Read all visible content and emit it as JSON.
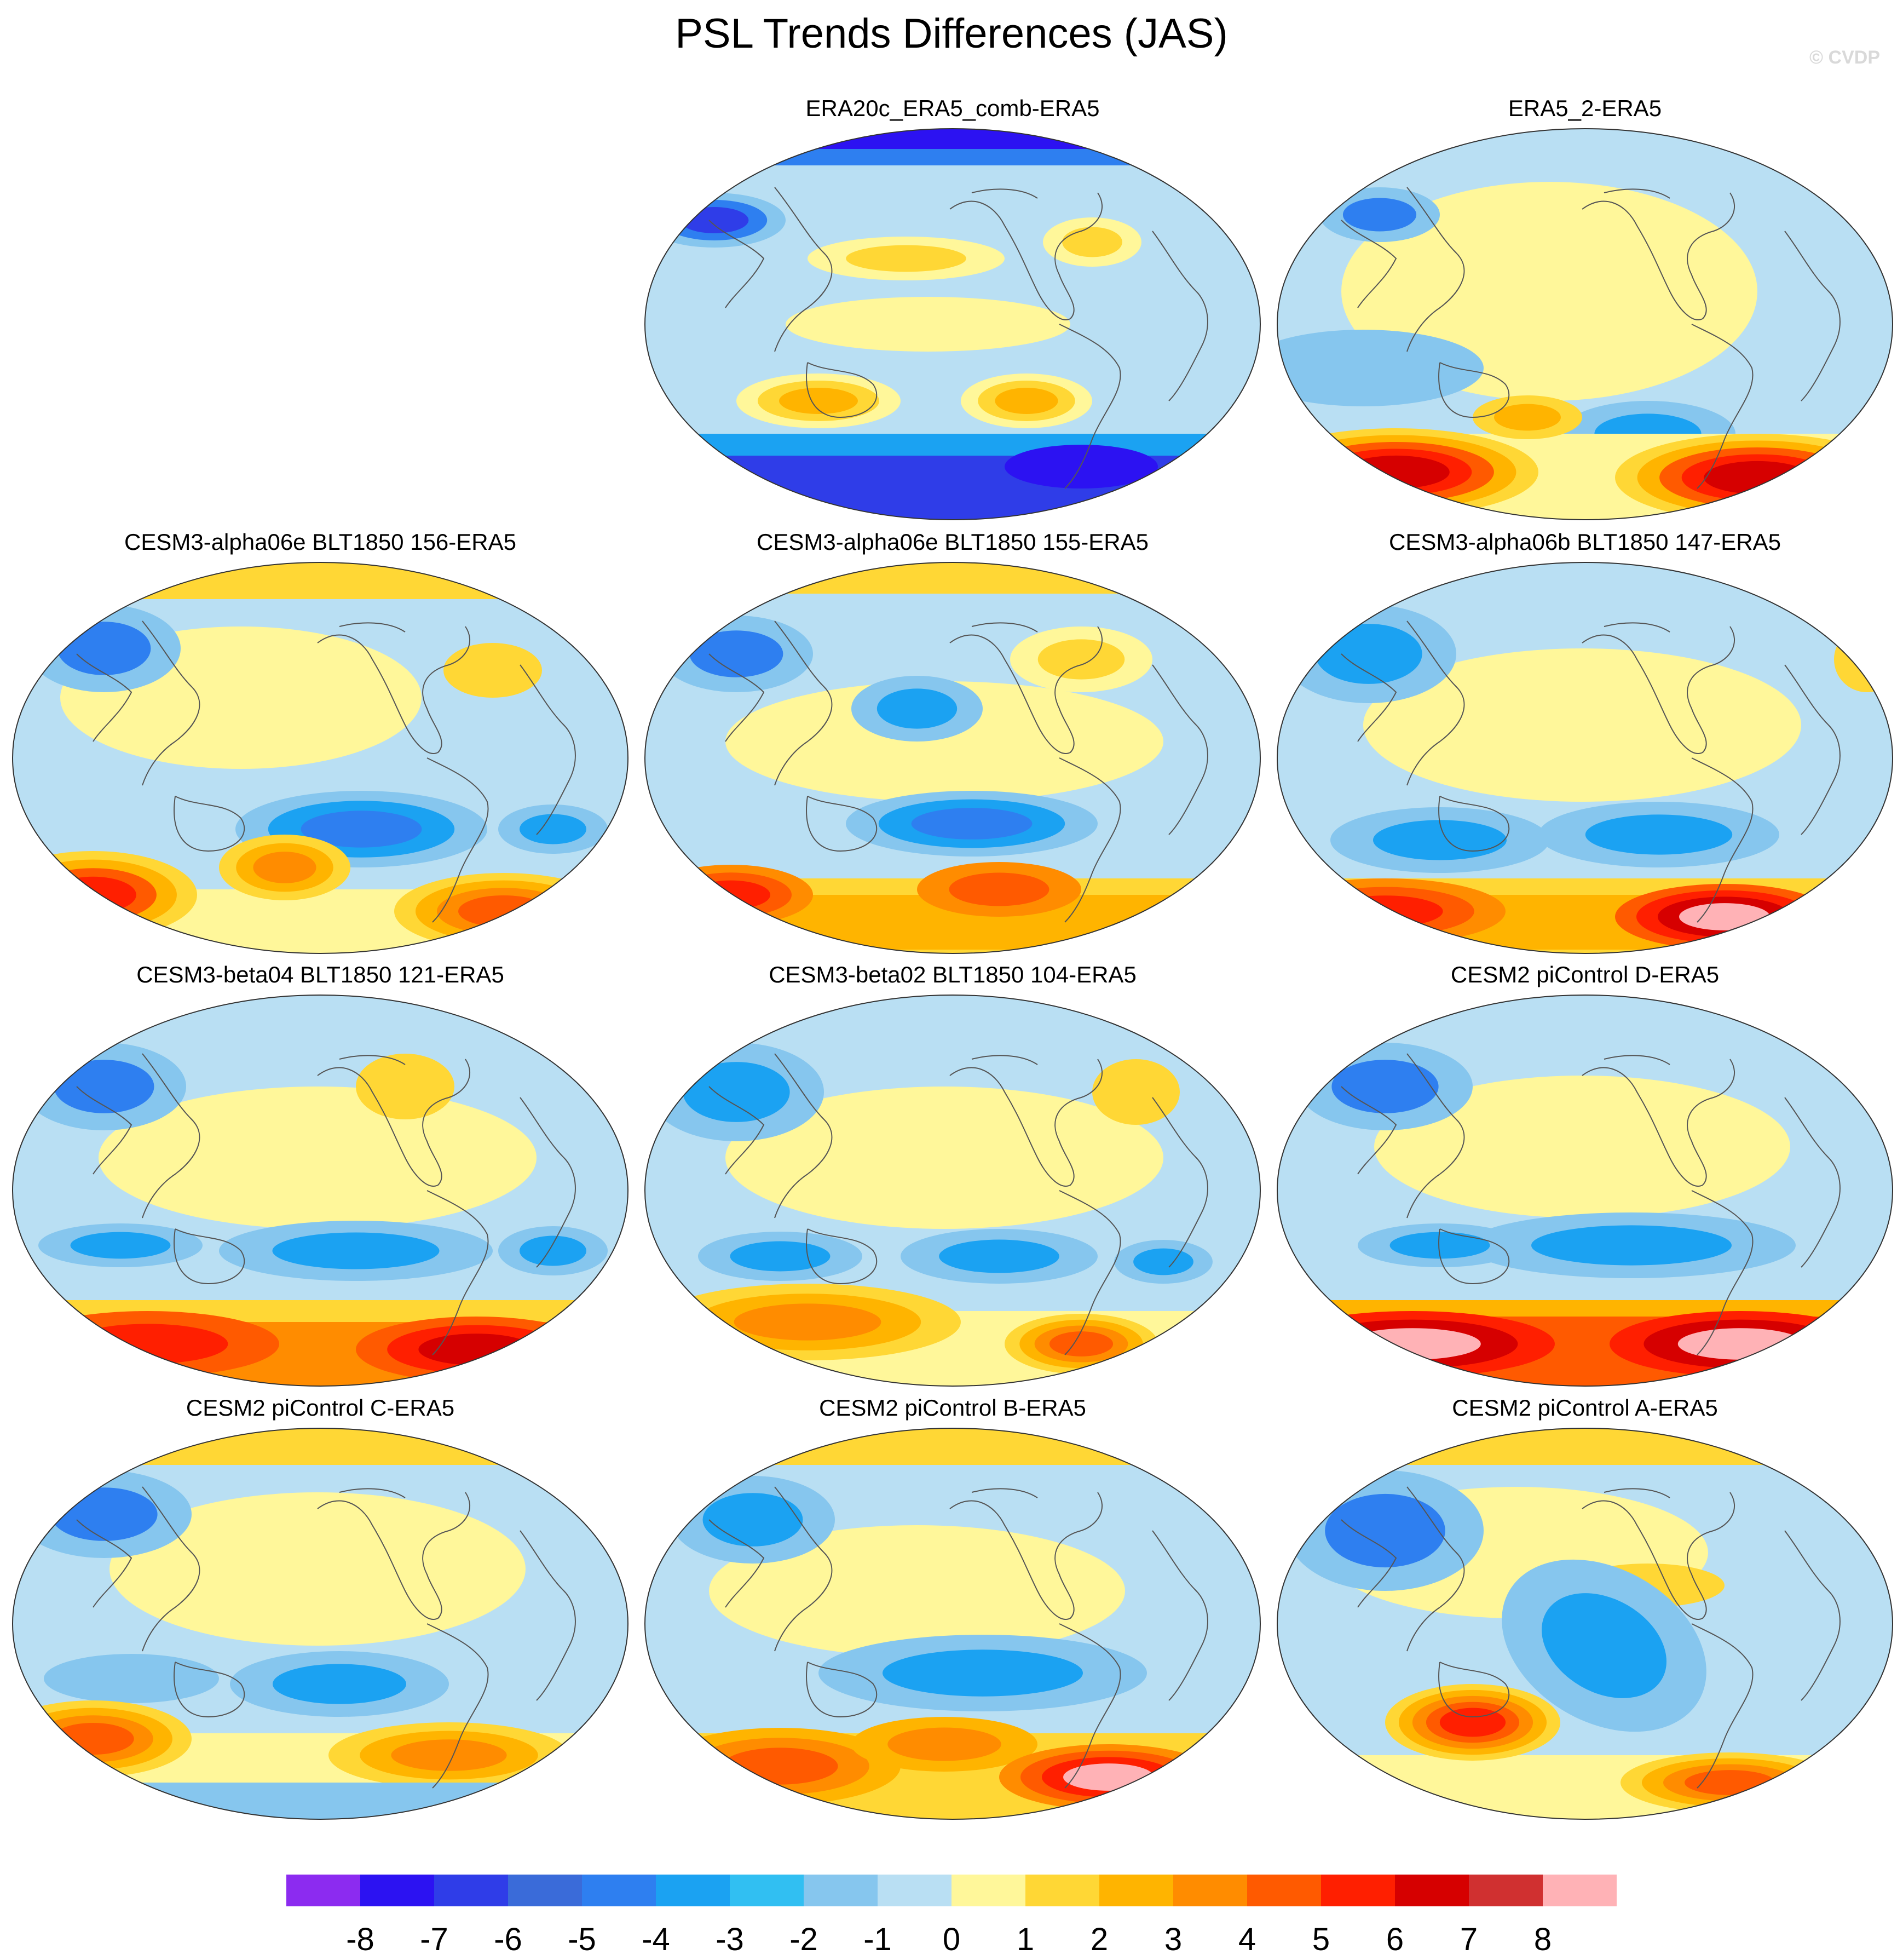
{
  "title": "PSL Trends Differences (JAS)",
  "copyright": "© CVDP",
  "panels": [
    {
      "title": "ERA20c_ERA5_comb-ERA5",
      "row": 0,
      "col": 1,
      "pattern": "era20c"
    },
    {
      "title": "ERA5_2-ERA5",
      "row": 0,
      "col": 2,
      "pattern": "era5_2"
    },
    {
      "title": "CESM3-alpha06e BLT1850 156-ERA5",
      "row": 1,
      "col": 0,
      "pattern": "modelA"
    },
    {
      "title": "CESM3-alpha06e BLT1850 155-ERA5",
      "row": 1,
      "col": 1,
      "pattern": "modelB"
    },
    {
      "title": "CESM3-alpha06b BLT1850 147-ERA5",
      "row": 1,
      "col": 2,
      "pattern": "modelC"
    },
    {
      "title": "CESM3-beta04 BLT1850 121-ERA5",
      "row": 2,
      "col": 0,
      "pattern": "modelD"
    },
    {
      "title": "CESM3-beta02 BLT1850 104-ERA5",
      "row": 2,
      "col": 1,
      "pattern": "modelE"
    },
    {
      "title": "CESM2 piControl D-ERA5",
      "row": 2,
      "col": 2,
      "pattern": "modelF"
    },
    {
      "title": "CESM2 piControl C-ERA5",
      "row": 3,
      "col": 0,
      "pattern": "modelG"
    },
    {
      "title": "CESM2 piControl B-ERA5",
      "row": 3,
      "col": 1,
      "pattern": "modelH"
    },
    {
      "title": "CESM2 piControl A-ERA5",
      "row": 3,
      "col": 2,
      "pattern": "modelI"
    }
  ],
  "colorbar": {
    "labels": [
      "-8",
      "-7",
      "-6",
      "-5",
      "-4",
      "-3",
      "-2",
      "-1",
      "0",
      "1",
      "2",
      "3",
      "4",
      "5",
      "6",
      "7",
      "8"
    ],
    "colors": [
      "#8c2bf0",
      "#2c12f2",
      "#2f3de8",
      "#3a6bd9",
      "#2e7ff0",
      "#1ba2f2",
      "#31bff2",
      "#86c6ee",
      "#b9dff3",
      "#fff79a",
      "#ffd735",
      "#ffb400",
      "#ff8c00",
      "#ff5a00",
      "#ff1f00",
      "#d60000",
      "#d03030",
      "#ffb2b6"
    ]
  },
  "fill_colors": {
    "background": "#b9dff3",
    "light_yellow": "#fff79a",
    "yellow": "#ffd735",
    "orange": "#ffb400",
    "dark_orange": "#ff8c00",
    "red_orange": "#ff5a00",
    "red": "#ff1f00",
    "dark_red": "#d60000",
    "pink": "#ffb2b6",
    "light_blue": "#86c6ee",
    "sky_blue": "#31bff2",
    "blue": "#1ba2f2",
    "mid_blue": "#2e7ff0",
    "deep_blue": "#3a6bd9",
    "dark_blue": "#2f3de8",
    "navy": "#2c12f2",
    "land_outline": "#555555"
  }
}
